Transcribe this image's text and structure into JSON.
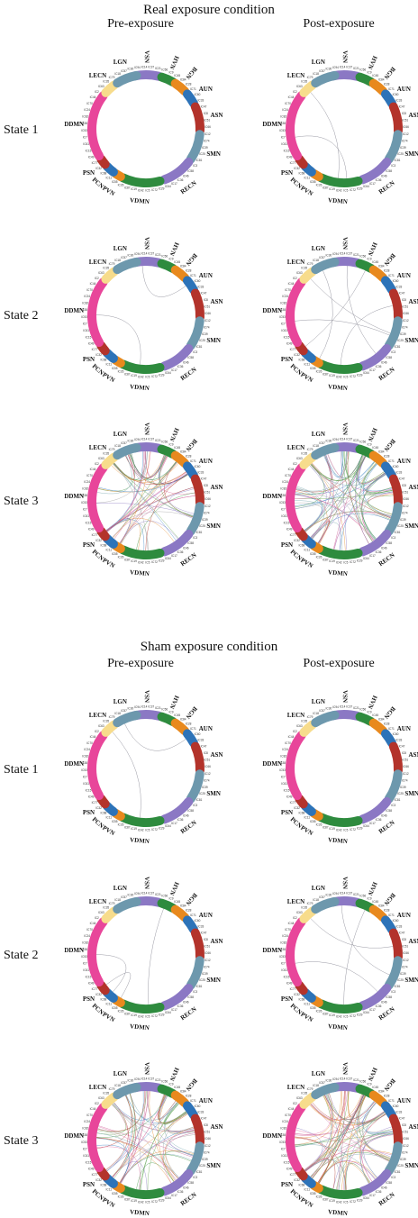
{
  "sections": [
    {
      "title": "Real exposure condition",
      "columns": [
        "Pre-exposure",
        "Post-exposure"
      ],
      "states": [
        "State 1",
        "State 2",
        "State 3"
      ]
    },
    {
      "title": "Sham exposure condition",
      "columns": [
        "Pre-exposure",
        "Post-exposure"
      ],
      "states": [
        "State 1",
        "State 2",
        "State 3"
      ]
    }
  ],
  "networks": [
    {
      "label": "VSN",
      "color": "#8b78c4"
    },
    {
      "label": "HVN",
      "color": "#2e8b3e"
    },
    {
      "label": "BGN",
      "color": "#e8891e"
    },
    {
      "label": "AUN",
      "color": "#2d73b8"
    },
    {
      "label": "ASN",
      "color": "#b3332b"
    },
    {
      "label": "SMN",
      "color": "#6d98ad"
    },
    {
      "label": "RECN",
      "color": "#8b78c4"
    },
    {
      "label": "VDMN",
      "color": "#2e8b3e"
    },
    {
      "label": "PVN",
      "color": "#e8891e"
    },
    {
      "label": "PCN",
      "color": "#2d73b8"
    },
    {
      "label": "PSN",
      "color": "#b3332b"
    },
    {
      "label": "DDMN",
      "color": "#e8469a"
    },
    {
      "label": "LECN",
      "color": "#f7dc8c"
    },
    {
      "label": "LGN",
      "color": "#6d98ad"
    }
  ],
  "roi_labels": [
    "IC94",
    "IC14",
    "IC37",
    "IC21",
    "IC56",
    "IC9",
    "IC45",
    "IC84",
    "IC28",
    "IC71",
    "IC60",
    "IC33",
    "IC47",
    "IC8",
    "IC51",
    "IC66",
    "IC12",
    "IC74",
    "IC39",
    "IC25",
    "IC81",
    "IC3",
    "IC58",
    "IC46",
    "IC36",
    "IC17",
    "IC64",
    "IC29",
    "IC72",
    "IC5",
    "IC42",
    "IC19",
    "IC87",
    "IC26",
    "IC55",
    "IC11",
    "IC68",
    "IC32",
    "IC77",
    "IC49",
    "IC15",
    "IC61",
    "IC7",
    "IC53",
    "IC38",
    "IC82",
    "IC24",
    "IC70",
    "IC44",
    "IC2",
    "IC63",
    "IC35",
    "IC79",
    "IC18",
    "IC57",
    "IC30"
  ],
  "connection_palette": [
    "#8e7cc3",
    "#4a9a4a",
    "#e69138",
    "#3d85c6",
    "#b23a30",
    "#76a5af",
    "#e06fa8",
    "#a3a3a3",
    "#cc6699",
    "#6aa84f"
  ],
  "panels": [
    {
      "section": 0,
      "state": 0,
      "col": 0,
      "connections": []
    },
    {
      "section": 0,
      "state": 0,
      "col": 1,
      "connections": [
        [
          11,
          7
        ],
        [
          12,
          7
        ]
      ]
    },
    {
      "section": 0,
      "state": 1,
      "col": 0,
      "connections": [
        [
          0,
          3
        ],
        [
          11,
          7
        ]
      ]
    },
    {
      "section": 0,
      "state": 1,
      "col": 1,
      "connections": [
        [
          13,
          8
        ],
        [
          12,
          5
        ],
        [
          0,
          6
        ],
        [
          11,
          5
        ],
        [
          4,
          7
        ],
        [
          1,
          10
        ]
      ]
    },
    {
      "section": 0,
      "state": 2,
      "col": 0,
      "density": 70
    },
    {
      "section": 0,
      "state": 2,
      "col": 1,
      "density": 95
    },
    {
      "section": 1,
      "state": 0,
      "col": 0,
      "connections": [
        [
          13,
          3
        ],
        [
          12,
          7
        ]
      ]
    },
    {
      "section": 1,
      "state": 0,
      "col": 1,
      "connections": []
    },
    {
      "section": 1,
      "state": 1,
      "col": 0,
      "connections": [
        [
          1,
          7
        ],
        [
          11,
          9
        ],
        [
          10,
          8
        ]
      ]
    },
    {
      "section": 1,
      "state": 1,
      "col": 1,
      "connections": [
        [
          11,
          6
        ],
        [
          12,
          4
        ],
        [
          1,
          7
        ],
        [
          0,
          5
        ]
      ]
    },
    {
      "section": 1,
      "state": 2,
      "col": 0,
      "density": 80
    },
    {
      "section": 1,
      "state": 2,
      "col": 1,
      "density": 95
    }
  ]
}
